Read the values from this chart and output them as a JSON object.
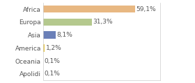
{
  "categories": [
    "Africa",
    "Europa",
    "Asia",
    "America",
    "Oceania",
    "Apolidi"
  ],
  "values": [
    59.1,
    31.3,
    8.1,
    1.2,
    0.1,
    0.1
  ],
  "labels": [
    "59,1%",
    "31,3%",
    "8,1%",
    "1,2%",
    "0,1%",
    "0,1%"
  ],
  "bar_colors": [
    "#e8b882",
    "#b5c98e",
    "#6b80b8",
    "#e8c84a",
    "#cccccc",
    "#cccccc"
  ],
  "xlim": [
    0,
    75
  ],
  "background_color": "#ffffff",
  "label_fontsize": 6.5,
  "tick_fontsize": 6.5,
  "bar_height": 0.55
}
